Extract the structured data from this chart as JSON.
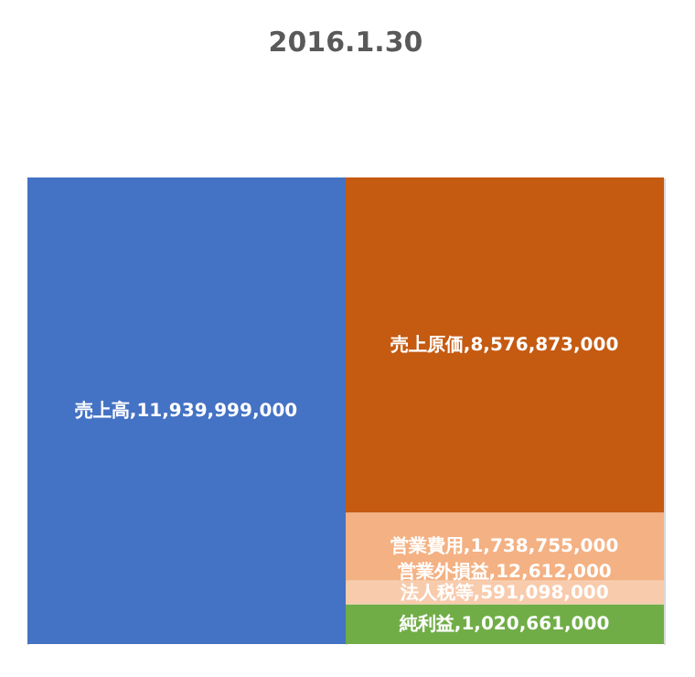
{
  "chart_data": {
    "type": "bar",
    "title": "2016.1.30",
    "categories": [
      null,
      null
    ],
    "stacked": true,
    "grid": "x",
    "legend": false,
    "series": [
      {
        "name": "売上高,",
        "color": "#4472c4",
        "values": [
          11939999000,
          null
        ],
        "value_labels": [
          "11,939,999,000",
          null
        ]
      },
      {
        "name": "純利益,",
        "color": "#70ad47",
        "values": [
          null,
          1020661000
        ],
        "value_labels": [
          null,
          "1,020,661,000"
        ]
      },
      {
        "name": "法人税等,",
        "color": "#f8cbad",
        "values": [
          null,
          591098000
        ],
        "value_labels": [
          null,
          "591,098,000"
        ]
      },
      {
        "name": "営業外損益,",
        "color": "#f4b183",
        "values": [
          null,
          12612000
        ],
        "value_labels": [
          null,
          "12,612,000"
        ]
      },
      {
        "name": "営業費用,",
        "color": "#f4b183",
        "values": [
          null,
          1738755000
        ],
        "value_labels": [
          null,
          "1,738,755,000"
        ]
      },
      {
        "name": "売上原価,",
        "color": "#c55a11",
        "values": [
          null,
          8576873000
        ],
        "value_labels": [
          null,
          "8,576,873,000"
        ]
      }
    ]
  }
}
